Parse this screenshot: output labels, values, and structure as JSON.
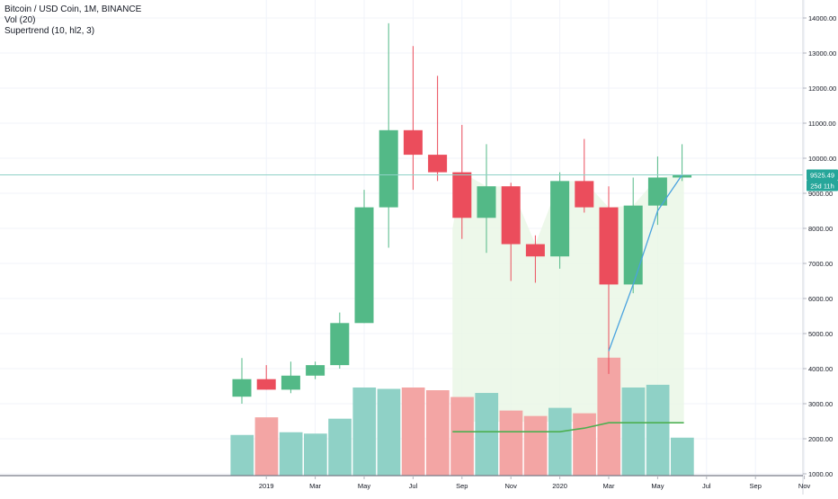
{
  "legend": {
    "symbol": "Bitcoin / USD Coin, 1M, BINANCE",
    "volume": "Vol (20)",
    "supertrend": "Supertrend (10, hl2, 3)"
  },
  "price_tag": {
    "value": "9525.49",
    "countdown": "25d 11h"
  },
  "colors": {
    "up": "#53b987",
    "down": "#eb4d5c",
    "vol_up": "#8fd1c6",
    "vol_down": "#f3a5a4",
    "supertrend_up": "#4aa3df",
    "fill": "#e9f6e5",
    "ma": "#4caf50",
    "price_line": "#8fd1c6"
  },
  "chart_data": {
    "type": "candlestick",
    "title": "Bitcoin / USD Coin, 1M, BINANCE",
    "ylim": [
      900,
      14500
    ],
    "y_ticks": [
      "1000.00",
      "2000.00",
      "3000.00",
      "4000.00",
      "5000.00",
      "6000.00",
      "7000.00",
      "8000.00",
      "9000.00",
      "10000.00",
      "11000.00",
      "12000.00",
      "13000.00",
      "14000.00"
    ],
    "x_labels": [
      "2019",
      "Mar",
      "May",
      "Jul",
      "Sep",
      "Nov",
      "2020",
      "Mar",
      "May",
      "Jul",
      "Sep",
      "Nov"
    ],
    "candles": [
      {
        "month": "2018-12",
        "open": 3200,
        "high": 4300,
        "low": 3000,
        "close": 3700
      },
      {
        "month": "2019-01",
        "open": 3700,
        "high": 4100,
        "low": 3400,
        "close": 3400
      },
      {
        "month": "2019-02",
        "open": 3400,
        "high": 4200,
        "low": 3300,
        "close": 3800
      },
      {
        "month": "2019-03",
        "open": 3800,
        "high": 4200,
        "low": 3700,
        "close": 4100
      },
      {
        "month": "2019-04",
        "open": 4100,
        "high": 5600,
        "low": 4000,
        "close": 5300
      },
      {
        "month": "2019-05",
        "open": 5300,
        "high": 9100,
        "low": 5300,
        "close": 8600
      },
      {
        "month": "2019-06",
        "open": 8600,
        "high": 13850,
        "low": 7450,
        "close": 10800
      },
      {
        "month": "2019-07",
        "open": 10800,
        "high": 13200,
        "low": 9100,
        "close": 10100
      },
      {
        "month": "2019-08",
        "open": 10100,
        "high": 12350,
        "low": 9350,
        "close": 9600
      },
      {
        "month": "2019-09",
        "open": 9600,
        "high": 10950,
        "low": 7700,
        "close": 8300
      },
      {
        "month": "2019-10",
        "open": 8300,
        "high": 10400,
        "low": 7300,
        "close": 9200
      },
      {
        "month": "2019-11",
        "open": 9200,
        "high": 9300,
        "low": 6500,
        "close": 7550
      },
      {
        "month": "2019-12",
        "open": 7550,
        "high": 7800,
        "low": 6450,
        "close": 7200
      },
      {
        "month": "2020-01",
        "open": 7200,
        "high": 9600,
        "low": 6850,
        "close": 9350
      },
      {
        "month": "2020-02",
        "open": 9350,
        "high": 10550,
        "low": 8450,
        "close": 8600
      },
      {
        "month": "2020-03",
        "open": 8600,
        "high": 9200,
        "low": 3850,
        "close": 6400
      },
      {
        "month": "2020-04",
        "open": 6400,
        "high": 9450,
        "low": 6150,
        "close": 8650
      },
      {
        "month": "2020-05",
        "open": 8650,
        "high": 10050,
        "low": 8100,
        "close": 9450
      },
      {
        "month": "2020-06",
        "open": 9450,
        "high": 10400,
        "low": 9350,
        "close": 9525
      }
    ],
    "volume": [
      1.5,
      2.15,
      1.6,
      1.55,
      2.1,
      3.25,
      3.2,
      3.25,
      3.15,
      2.9,
      3.05,
      2.4,
      2.2,
      2.5,
      2.3,
      4.35,
      3.25,
      3.35,
      1.4
    ],
    "volume_ma": [
      null,
      null,
      null,
      null,
      null,
      null,
      null,
      null,
      null,
      1.62,
      1.62,
      1.62,
      1.62,
      1.62,
      1.75,
      1.95,
      1.95,
      1.95,
      1.95
    ],
    "supertrend": [
      null,
      null,
      null,
      null,
      null,
      null,
      null,
      null,
      null,
      null,
      null,
      null,
      null,
      null,
      null,
      4500,
      6400,
      8500,
      9525
    ]
  }
}
